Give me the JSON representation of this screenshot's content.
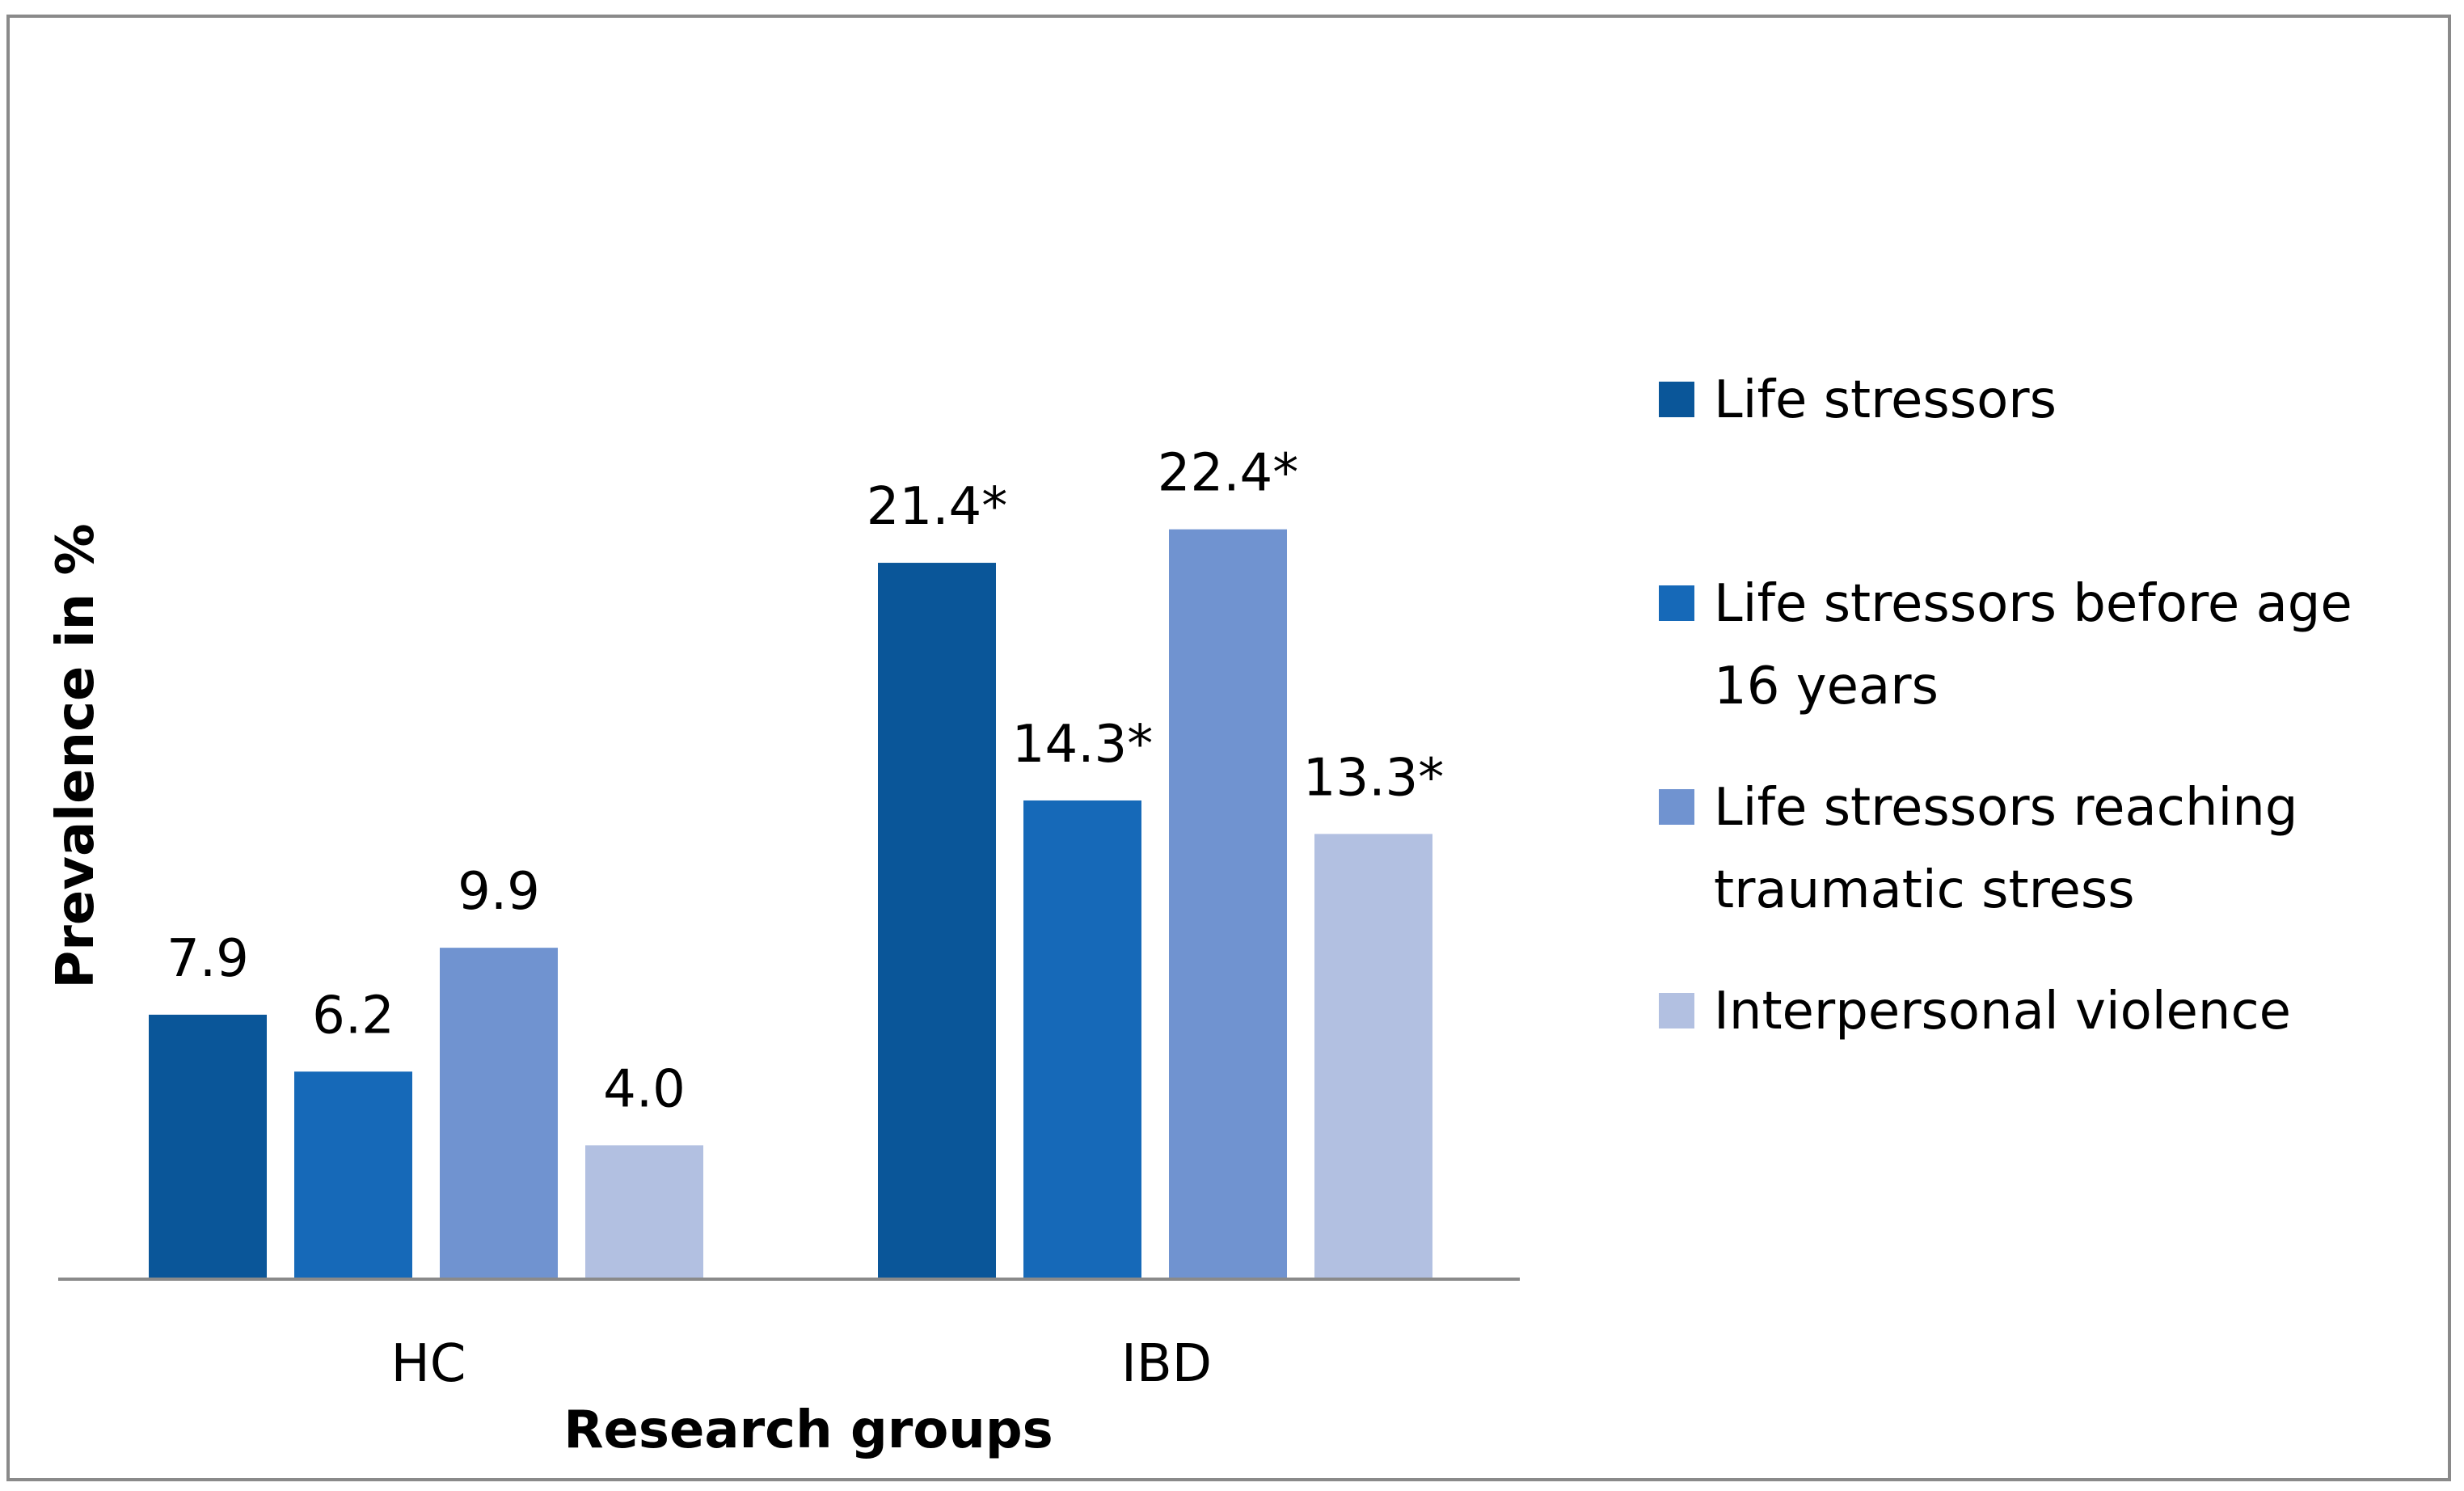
{
  "chart_data": {
    "type": "bar",
    "categories": [
      "HC",
      "IBD"
    ],
    "series": [
      {
        "name": "Life stressors",
        "color": "#0a5699",
        "values": [
          7.9,
          21.4
        ],
        "labels": [
          "7.9",
          "21.4*"
        ]
      },
      {
        "name": "Life stressors before age 16 years",
        "legend_lines": [
          "Life stressors before age",
          "16 years"
        ],
        "color": "#1669b8",
        "values": [
          6.2,
          14.3
        ],
        "labels": [
          "6.2",
          "14.3*"
        ]
      },
      {
        "name": "Life stressors reaching traumatic stress",
        "legend_lines": [
          "Life stressors reaching",
          "traumatic stress"
        ],
        "color": "#7093d0",
        "values": [
          9.9,
          22.4
        ],
        "labels": [
          "9.9",
          "22.4*"
        ]
      },
      {
        "name": "Interpersonal violence",
        "color": "#b2c0e1",
        "values": [
          4.0,
          13.3
        ],
        "labels": [
          "4.0",
          "13.3*"
        ]
      }
    ],
    "title": "",
    "xlabel": "Research groups",
    "ylabel": "Prevalence in %",
    "ylim": [
      0,
      24
    ],
    "grid": false,
    "legend_position": "right"
  }
}
